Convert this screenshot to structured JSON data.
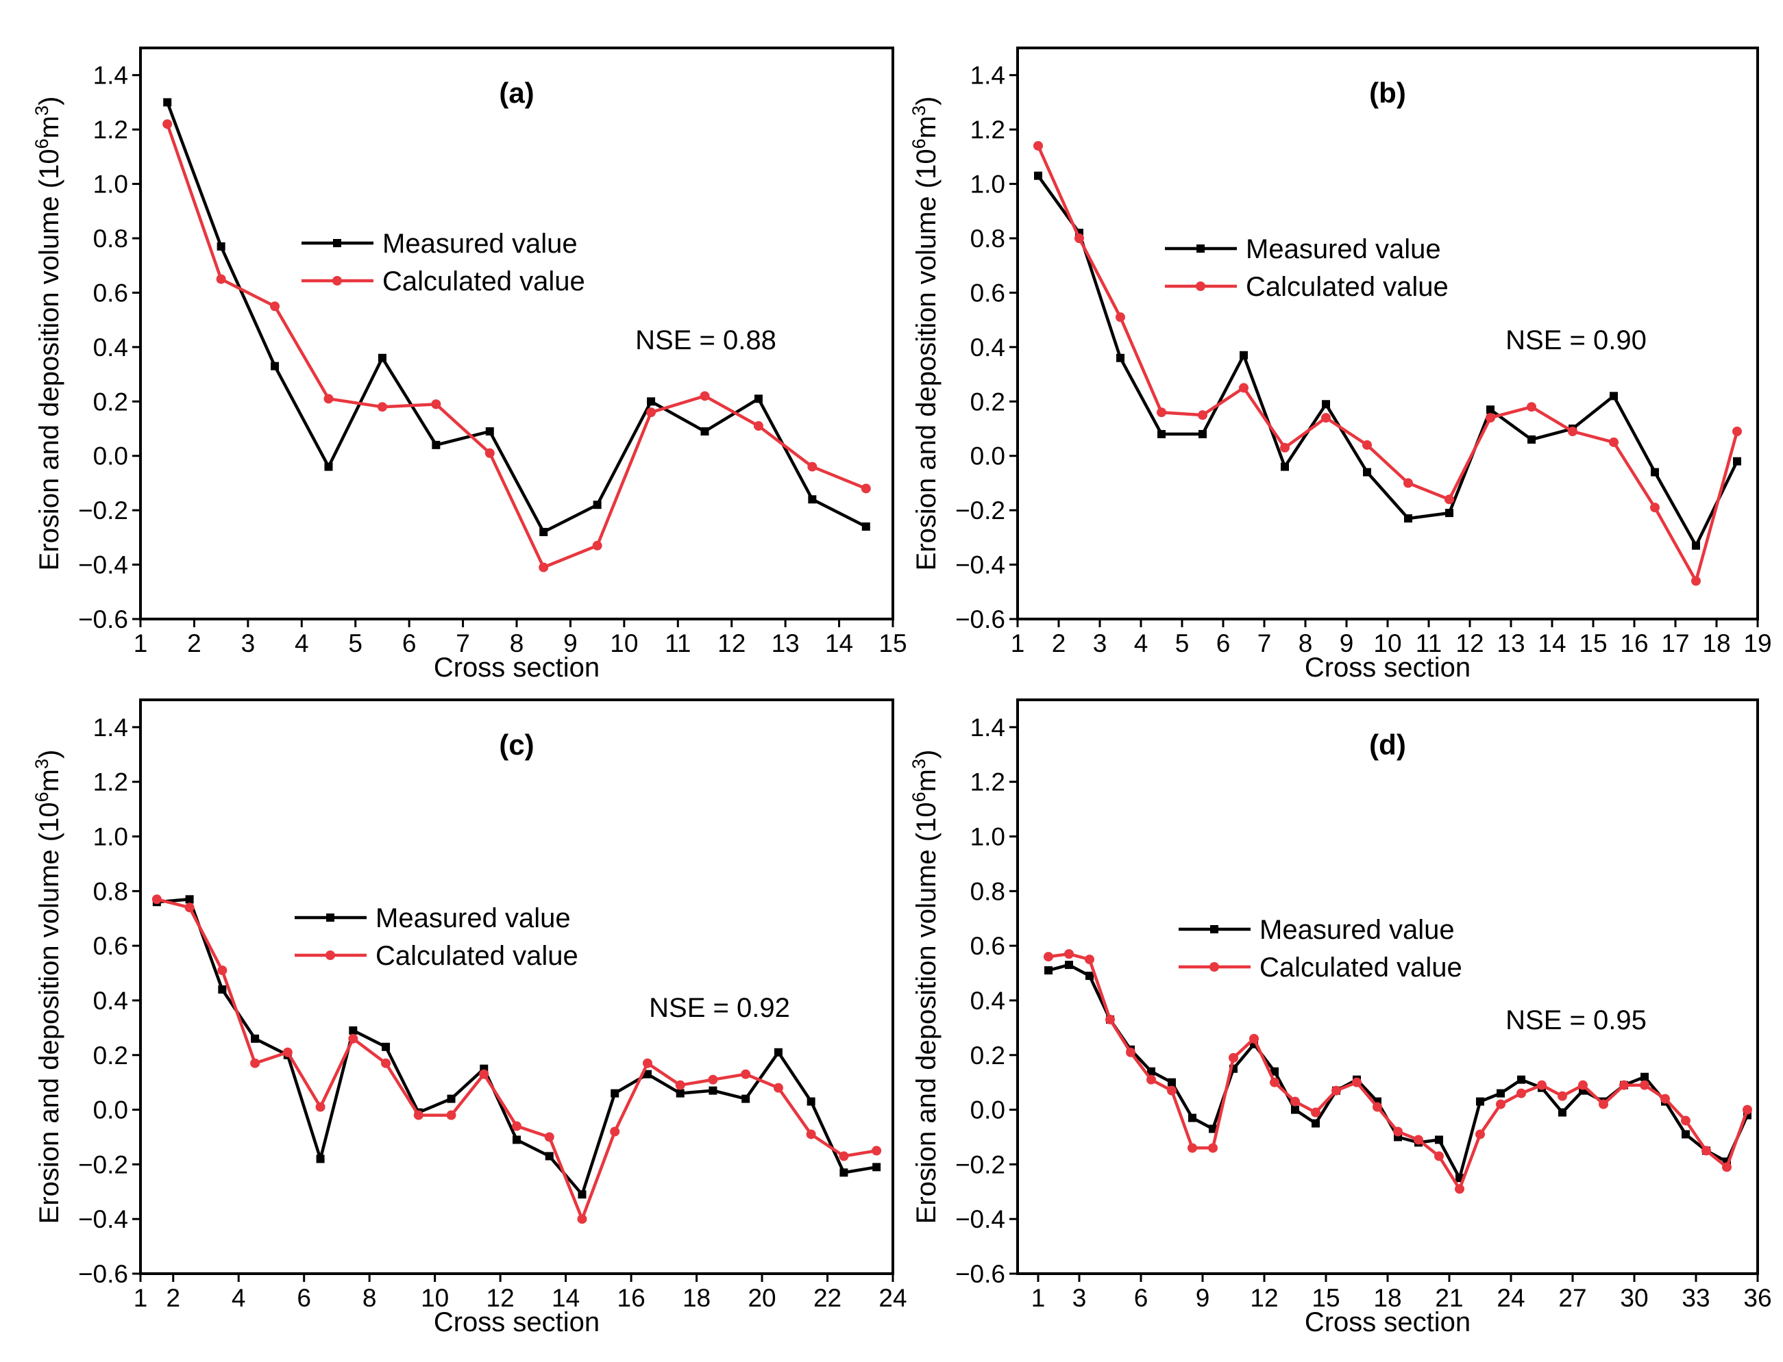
{
  "colors": {
    "measured": "#000000",
    "calculated": "#e8373f",
    "axis": "#000000"
  },
  "chart_data": [
    {
      "type": "line",
      "panel_label": "(a)",
      "xlabel": "Cross section",
      "ylabel": "Erosion and deposition volume (10⁶m³)",
      "ylabel_prefix": "Erosion and deposition volume (10",
      "ylabel_sup1": "6",
      "ylabel_mid": "m",
      "ylabel_sup2": "3",
      "ylabel_suffix": ")",
      "xlim": [
        1,
        15
      ],
      "ylim": [
        -0.6,
        1.5
      ],
      "xticks": [
        1,
        2,
        3,
        4,
        5,
        6,
        7,
        8,
        9,
        10,
        11,
        12,
        13,
        14,
        15
      ],
      "yticks": [
        -0.6,
        -0.4,
        -0.2,
        0.0,
        0.2,
        0.4,
        0.6,
        0.8,
        1.0,
        1.2,
        1.4
      ],
      "ytick_labels": [
        "−0.6",
        "−0.4",
        "−0.2",
        "0.0",
        "0.2",
        "0.4",
        "0.6",
        "0.8",
        "1.0",
        "1.2",
        "1.4"
      ],
      "annotation": "NSE = 0.88",
      "legend": [
        "Measured value",
        "Calculated value"
      ],
      "grid": false,
      "series": [
        {
          "name": "Measured value",
          "marker": "square",
          "x": [
            1.5,
            2.5,
            3.5,
            4.5,
            5.5,
            6.5,
            7.5,
            8.5,
            9.5,
            10.5,
            11.5,
            12.5,
            13.5,
            14.5
          ],
          "y": [
            1.3,
            0.77,
            0.33,
            -0.04,
            0.36,
            0.04,
            0.09,
            -0.28,
            -0.18,
            0.2,
            0.09,
            0.21,
            -0.16,
            -0.26
          ]
        },
        {
          "name": "Calculated value",
          "marker": "circle",
          "x": [
            1.5,
            2.5,
            3.5,
            4.5,
            5.5,
            6.5,
            7.5,
            8.5,
            9.5,
            10.5,
            11.5,
            12.5,
            13.5,
            14.5
          ],
          "y": [
            1.22,
            0.65,
            0.55,
            0.21,
            0.18,
            0.19,
            0.01,
            -0.41,
            -0.33,
            0.16,
            0.22,
            0.11,
            -0.04,
            -0.12
          ]
        }
      ]
    },
    {
      "type": "line",
      "panel_label": "(b)",
      "xlabel": "Cross section",
      "ylabel": "Erosion and deposition volume (10⁶m³)",
      "ylabel_prefix": "Erosion and deposition volume (10",
      "ylabel_sup1": "6",
      "ylabel_mid": "m",
      "ylabel_sup2": "3",
      "ylabel_suffix": ")",
      "xlim": [
        1,
        19
      ],
      "ylim": [
        -0.6,
        1.5
      ],
      "xticks": [
        1,
        2,
        3,
        4,
        5,
        6,
        7,
        8,
        9,
        10,
        11,
        12,
        13,
        14,
        15,
        16,
        17,
        18,
        19
      ],
      "yticks": [
        -0.6,
        -0.4,
        -0.2,
        0.0,
        0.2,
        0.4,
        0.6,
        0.8,
        1.0,
        1.2,
        1.4
      ],
      "ytick_labels": [
        "−0.6",
        "−0.4",
        "−0.2",
        "0.0",
        "0.2",
        "0.4",
        "0.6",
        "0.8",
        "1.0",
        "1.2",
        "1.4"
      ],
      "annotation": "NSE = 0.90",
      "legend": [
        "Measured value",
        "Calculated value"
      ],
      "grid": false,
      "series": [
        {
          "name": "Measured value",
          "marker": "square",
          "x": [
            1.5,
            2.5,
            3.5,
            4.5,
            5.5,
            6.5,
            7.5,
            8.5,
            9.5,
            10.5,
            11.5,
            12.5,
            13.5,
            14.5,
            15.5,
            16.5,
            17.5,
            18.5
          ],
          "y": [
            1.03,
            0.82,
            0.36,
            0.08,
            0.08,
            0.37,
            -0.04,
            0.19,
            -0.06,
            -0.23,
            -0.21,
            0.17,
            0.06,
            0.1,
            0.22,
            -0.06,
            -0.33,
            -0.02
          ]
        },
        {
          "name": "Calculated value",
          "marker": "circle",
          "x": [
            1.5,
            2.5,
            3.5,
            4.5,
            5.5,
            6.5,
            7.5,
            8.5,
            9.5,
            10.5,
            11.5,
            12.5,
            13.5,
            14.5,
            15.5,
            16.5,
            17.5,
            18.5
          ],
          "y": [
            1.14,
            0.8,
            0.51,
            0.16,
            0.15,
            0.25,
            0.03,
            0.14,
            0.04,
            -0.1,
            -0.16,
            0.14,
            0.18,
            0.09,
            0.05,
            -0.19,
            -0.46,
            0.09
          ]
        }
      ]
    },
    {
      "type": "line",
      "panel_label": "(c)",
      "xlabel": "Cross section",
      "ylabel": "Erosion and deposition volume (10⁶m³)",
      "ylabel_prefix": "Erosion and deposition volume (10",
      "ylabel_sup1": "6",
      "ylabel_mid": "m",
      "ylabel_sup2": "3",
      "ylabel_suffix": ")",
      "xlim": [
        1,
        24
      ],
      "ylim": [
        -0.6,
        1.5
      ],
      "xticks": [
        1,
        2,
        4,
        6,
        8,
        10,
        12,
        14,
        16,
        18,
        20,
        22,
        24
      ],
      "yticks": [
        -0.6,
        -0.4,
        -0.2,
        0.0,
        0.2,
        0.4,
        0.6,
        0.8,
        1.0,
        1.2,
        1.4
      ],
      "ytick_labels": [
        "−0.6",
        "−0.4",
        "−0.2",
        "0.0",
        "0.2",
        "0.4",
        "0.6",
        "0.8",
        "1.0",
        "1.2",
        "1.4"
      ],
      "annotation": "NSE = 0.92",
      "legend": [
        "Measured value",
        "Calculated value"
      ],
      "grid": false,
      "series": [
        {
          "name": "Measured value",
          "marker": "square",
          "x": [
            1.5,
            2.5,
            3.5,
            4.5,
            5.5,
            6.5,
            7.5,
            8.5,
            9.5,
            10.5,
            11.5,
            12.5,
            13.5,
            14.5,
            15.5,
            16.5,
            17.5,
            18.5,
            19.5,
            20.5,
            21.5,
            22.5,
            23.5
          ],
          "y": [
            0.76,
            0.77,
            0.44,
            0.26,
            0.2,
            -0.18,
            0.29,
            0.23,
            -0.01,
            0.04,
            0.15,
            -0.11,
            -0.17,
            -0.31,
            0.06,
            0.13,
            0.06,
            0.07,
            0.04,
            0.21,
            0.03,
            -0.23,
            -0.21
          ]
        },
        {
          "name": "Calculated value",
          "marker": "circle",
          "x": [
            1.5,
            2.5,
            3.5,
            4.5,
            5.5,
            6.5,
            7.5,
            8.5,
            9.5,
            10.5,
            11.5,
            12.5,
            13.5,
            14.5,
            15.5,
            16.5,
            17.5,
            18.5,
            19.5,
            20.5,
            21.5,
            22.5,
            23.5
          ],
          "y": [
            0.77,
            0.74,
            0.51,
            0.17,
            0.21,
            0.01,
            0.26,
            0.17,
            -0.02,
            -0.02,
            0.13,
            -0.06,
            -0.1,
            -0.4,
            -0.08,
            0.17,
            0.09,
            0.11,
            0.13,
            0.08,
            -0.09,
            -0.17,
            -0.15
          ]
        }
      ]
    },
    {
      "type": "line",
      "panel_label": "(d)",
      "xlabel": "Cross section",
      "ylabel": "Erosion and deposition volume (10⁶m³)",
      "ylabel_prefix": "Erosion and deposition volume (10",
      "ylabel_sup1": "6",
      "ylabel_mid": "m",
      "ylabel_sup2": "3",
      "ylabel_suffix": ")",
      "xlim": [
        0,
        36
      ],
      "ylim": [
        -0.6,
        1.5
      ],
      "xticks": [
        1,
        3,
        6,
        9,
        12,
        15,
        18,
        21,
        24,
        27,
        30,
        33,
        36
      ],
      "yticks": [
        -0.6,
        -0.4,
        -0.2,
        0.0,
        0.2,
        0.4,
        0.6,
        0.8,
        1.0,
        1.2,
        1.4
      ],
      "ytick_labels": [
        "−0.6",
        "−0.4",
        "−0.2",
        "0.0",
        "0.2",
        "0.4",
        "0.6",
        "0.8",
        "1.0",
        "1.2",
        "1.4"
      ],
      "annotation": "NSE = 0.95",
      "legend": [
        "Measured value",
        "Calculated value"
      ],
      "grid": false,
      "series": [
        {
          "name": "Measured value",
          "marker": "square",
          "x": [
            1.5,
            2.5,
            3.5,
            4.5,
            5.5,
            6.5,
            7.5,
            8.5,
            9.5,
            10.5,
            11.5,
            12.5,
            13.5,
            14.5,
            15.5,
            16.5,
            17.5,
            18.5,
            19.5,
            20.5,
            21.5,
            22.5,
            23.5,
            24.5,
            25.5,
            26.5,
            27.5,
            28.5,
            29.5,
            30.5,
            31.5,
            32.5,
            33.5,
            34.5,
            35.5
          ],
          "y": [
            0.51,
            0.53,
            0.49,
            0.33,
            0.22,
            0.14,
            0.1,
            -0.03,
            -0.07,
            0.15,
            0.24,
            0.14,
            0.0,
            -0.05,
            0.07,
            0.11,
            0.03,
            -0.1,
            -0.12,
            -0.11,
            -0.25,
            0.03,
            0.06,
            0.11,
            0.08,
            -0.01,
            0.07,
            0.03,
            0.09,
            0.12,
            0.03,
            -0.09,
            -0.15,
            -0.19,
            -0.02
          ]
        },
        {
          "name": "Calculated value",
          "marker": "circle",
          "x": [
            1.5,
            2.5,
            3.5,
            4.5,
            5.5,
            6.5,
            7.5,
            8.5,
            9.5,
            10.5,
            11.5,
            12.5,
            13.5,
            14.5,
            15.5,
            16.5,
            17.5,
            18.5,
            19.5,
            20.5,
            21.5,
            22.5,
            23.5,
            24.5,
            25.5,
            26.5,
            27.5,
            28.5,
            29.5,
            30.5,
            31.5,
            32.5,
            33.5,
            34.5,
            35.5
          ],
          "y": [
            0.56,
            0.57,
            0.55,
            0.33,
            0.21,
            0.11,
            0.07,
            -0.14,
            -0.14,
            0.19,
            0.26,
            0.1,
            0.03,
            -0.01,
            0.07,
            0.1,
            0.01,
            -0.08,
            -0.11,
            -0.17,
            -0.29,
            -0.09,
            0.02,
            0.06,
            0.09,
            0.05,
            0.09,
            0.02,
            0.09,
            0.09,
            0.04,
            -0.04,
            -0.15,
            -0.21,
            0.0
          ]
        }
      ]
    }
  ]
}
